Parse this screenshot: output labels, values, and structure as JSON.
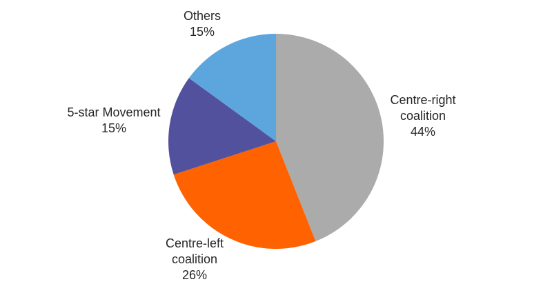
{
  "chart_data": {
    "type": "pie",
    "title": "",
    "direction": "clockwise",
    "start_angle_deg": 0,
    "label_position": "outside",
    "background_color": "#FFFFFF",
    "text_color": "#262626",
    "slices": [
      {
        "label": "Centre-right coalition",
        "pct_label": "44%",
        "value": 44,
        "color": "#ABABAB"
      },
      {
        "label": "Centre-left coalition",
        "pct_label": "26%",
        "value": 26,
        "color": "#FF6200"
      },
      {
        "label": "5-star Movement",
        "pct_label": "15%",
        "value": 15,
        "color": "#52519E"
      },
      {
        "label": "Others",
        "pct_label": "15%",
        "value": 15,
        "color": "#5CA5DD"
      }
    ]
  }
}
